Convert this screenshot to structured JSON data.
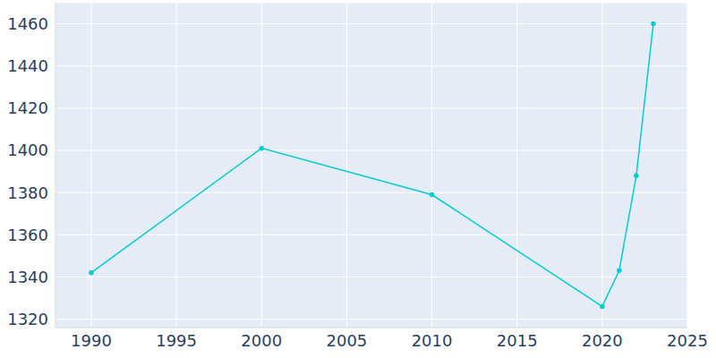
{
  "chart_data": {
    "type": "line",
    "x": [
      1990,
      2000,
      2010,
      2020,
      2021,
      2022,
      2023
    ],
    "values": [
      1342,
      1401,
      1379,
      1326,
      1343,
      1388,
      1460
    ],
    "color": "#00cdd2",
    "xlim": [
      1987.9,
      2025
    ],
    "xticks": [
      1990,
      1995,
      2000,
      2005,
      2010,
      2015,
      2020,
      2025
    ],
    "ylim": [
      1316,
      1470
    ],
    "yticks": [
      1320,
      1340,
      1360,
      1380,
      1400,
      1420,
      1440,
      1460
    ],
    "grid": true,
    "marker": "circle"
  }
}
